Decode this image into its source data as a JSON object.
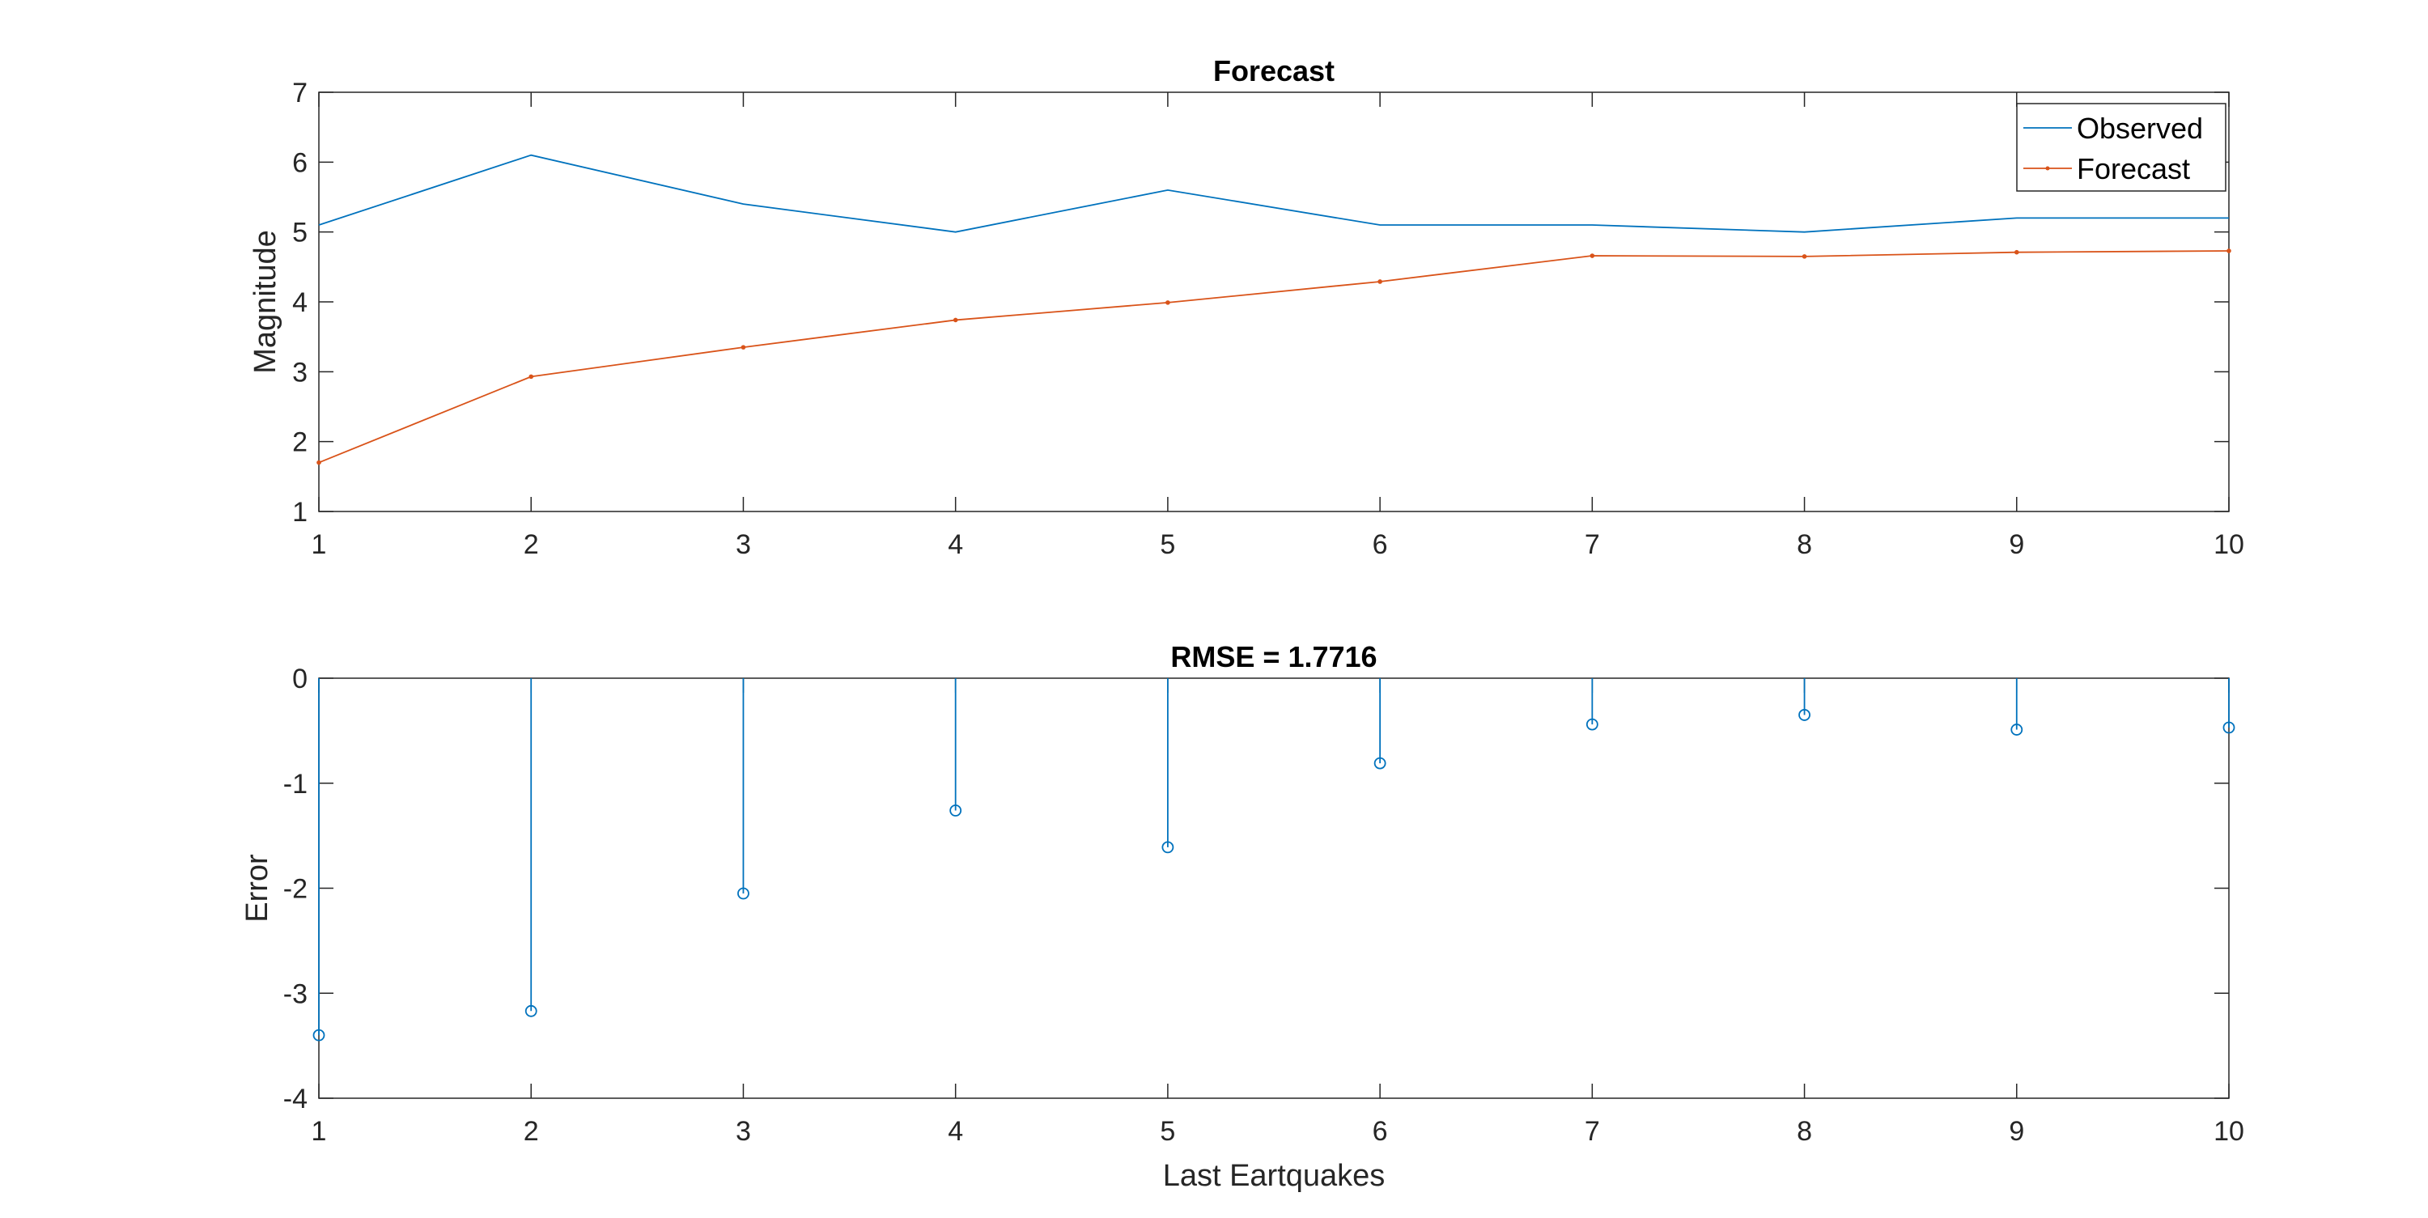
{
  "colors": {
    "observed": "#0072BD",
    "forecast": "#D95319",
    "error": "#0072BD",
    "axis": "#262626",
    "background": "#ffffff"
  },
  "chart_data": [
    {
      "type": "line",
      "title": "Forecast",
      "xlabel": "",
      "ylabel": "Magnitude",
      "xlim": [
        1,
        10
      ],
      "ylim": [
        1,
        7
      ],
      "x_ticks": [
        1,
        2,
        3,
        4,
        5,
        6,
        7,
        8,
        9,
        10
      ],
      "y_ticks": [
        1,
        2,
        3,
        4,
        5,
        6,
        7
      ],
      "grid": false,
      "legend_position": "top-right",
      "x": [
        1,
        2,
        3,
        4,
        5,
        6,
        7,
        8,
        9,
        10
      ],
      "series": [
        {
          "name": "Observed",
          "values": [
            5.1,
            6.1,
            5.4,
            5.0,
            5.6,
            5.1,
            5.1,
            5.0,
            5.2,
            5.2
          ],
          "marker": "none"
        },
        {
          "name": "Forecast",
          "values": [
            1.7,
            2.93,
            3.35,
            3.74,
            3.99,
            4.29,
            4.66,
            4.65,
            4.71,
            4.73
          ],
          "marker": "dot"
        }
      ]
    },
    {
      "type": "stem",
      "title": "RMSE = 1.7716",
      "xlabel": "Last Eartquakes",
      "ylabel": "Error",
      "xlim": [
        1,
        10
      ],
      "ylim": [
        -4,
        0
      ],
      "x_ticks": [
        1,
        2,
        3,
        4,
        5,
        6,
        7,
        8,
        9,
        10
      ],
      "y_ticks": [
        0,
        -1,
        -2,
        -3,
        -4
      ],
      "grid": false,
      "x": [
        1,
        2,
        3,
        4,
        5,
        6,
        7,
        8,
        9,
        10
      ],
      "series": [
        {
          "values": [
            -3.4,
            -3.17,
            -2.05,
            -1.26,
            -1.61,
            -0.81,
            -0.44,
            -0.35,
            -0.49,
            -0.47
          ],
          "marker": "circle"
        }
      ]
    }
  ]
}
